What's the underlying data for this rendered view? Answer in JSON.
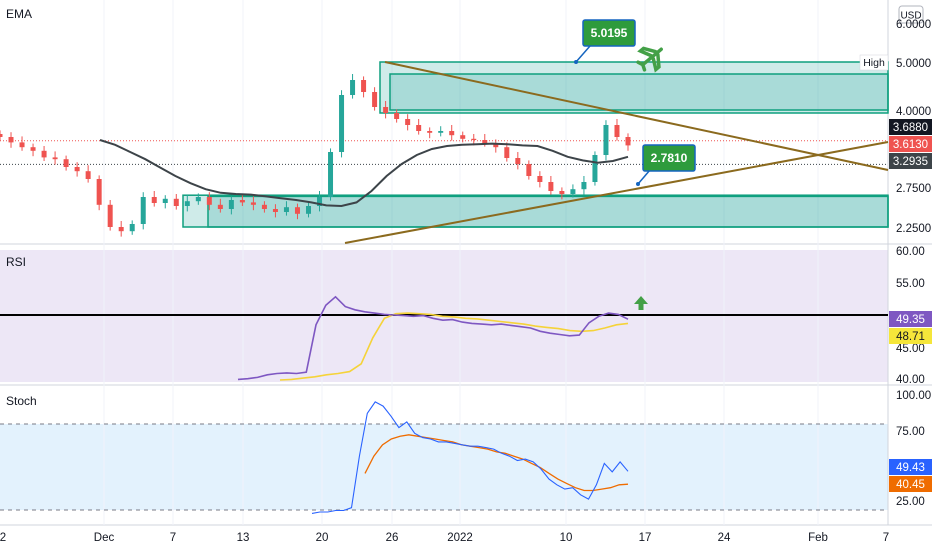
{
  "currency": "USD",
  "colors": {
    "up": "#26a69a",
    "down": "#ef5350",
    "zone_fill": "#26a69a",
    "zone_stroke": "#0e9f7e",
    "ema": "#3d4449",
    "trendline": "#8b6a1e",
    "rsi": "#7e57c2",
    "rsi_ma": "#f5d339",
    "rsi_bg": "#ede7f6",
    "stoch_k": "#2962ff",
    "stoch_d": "#ef6c00",
    "stoch_bg": "#e3f2fd",
    "callout_fill": "#2e9b3c",
    "callout_border": "#1565c0",
    "arrow": "#43a047"
  },
  "panes": {
    "main": {
      "label": "EMA"
    },
    "rsi": {
      "label": "RSI"
    },
    "stoch": {
      "label": "Stoch"
    }
  },
  "axis": {
    "main_ticks": [
      "6.0000",
      "5.0000",
      "4.0000",
      "2.7500",
      "2.2500"
    ],
    "rsi_ticks": [
      "60.00",
      "55.00",
      "45.00",
      "40.00"
    ],
    "stoch_ticks": [
      "100.00",
      "75.00",
      "25.00"
    ],
    "time_ticks": [
      "2",
      "Dec",
      "7",
      "13",
      "20",
      "26",
      "2022",
      "10",
      "17",
      "24",
      "Feb",
      "7"
    ]
  },
  "price_labels": {
    "high_tag": "High",
    "high": "5.0000",
    "last": "3.6880",
    "current": "3.6130",
    "ema": "3.2935",
    "rsi": "49.35",
    "rsi_ma": "48.71",
    "stoch_k": "49.43",
    "stoch_d": "40.45"
  },
  "annotations": {
    "upper_callout": "5.0195",
    "lower_callout": "2.7810"
  },
  "chart_data": [
    {
      "type": "candlestick",
      "title": "EMA",
      "ylim": [
        2.2,
        6.0
      ],
      "x_ticks": [
        "2",
        "Dec",
        "7",
        "13",
        "20",
        "26",
        "2022",
        "10",
        "17",
        "24",
        "Feb",
        "7"
      ],
      "close": [
        3.75,
        3.66,
        3.58,
        3.52,
        3.41,
        3.38,
        3.25,
        3.18,
        3.05,
        2.62,
        2.25,
        2.18,
        2.3,
        2.75,
        2.65,
        2.72,
        2.6,
        2.68,
        2.75,
        2.62,
        2.55,
        2.7,
        2.66,
        2.62,
        2.55,
        2.5,
        2.58,
        2.47,
        2.6,
        2.75,
        3.5,
        4.45,
        4.7,
        4.5,
        4.25,
        4.15,
        4.05,
        3.95,
        3.85,
        3.82,
        3.85,
        3.78,
        3.72,
        3.7,
        3.65,
        3.58,
        3.4,
        3.3,
        3.1,
        3.0,
        2.85,
        2.8,
        2.88,
        3.0,
        3.45,
        3.95,
        3.75,
        3.61
      ],
      "series": [
        {
          "name": "EMA",
          "values": [
            3.7,
            3.62,
            3.5,
            3.38,
            3.24,
            3.1,
            2.98,
            2.88,
            2.82,
            2.8,
            2.79,
            2.76,
            2.73,
            2.7,
            2.66,
            2.61,
            2.6,
            2.66,
            2.85,
            3.1,
            3.3,
            3.45,
            3.55,
            3.6,
            3.62,
            3.63,
            3.64,
            3.63,
            3.61,
            3.6,
            3.52,
            3.42,
            3.36,
            3.32,
            3.35,
            3.42
          ]
        }
      ],
      "zones": [
        {
          "from": 4.15,
          "to": 5.0
        },
        {
          "from": 4.2,
          "to": 4.8
        },
        {
          "from": 2.25,
          "to": 2.78
        },
        {
          "from": 2.25,
          "to": 2.76
        }
      ],
      "horizontal_levels": [
        3.688,
        3.2935,
        5.0
      ],
      "annotations": [
        "5.0195",
        "2.7810"
      ]
    },
    {
      "type": "line",
      "title": "RSI",
      "ylim": [
        40,
        60
      ],
      "hline": 50.5,
      "series": [
        {
          "name": "RSI",
          "values": [
            40.1,
            40.2,
            40.4,
            40.8,
            41.0,
            41.1,
            41.0,
            41.2,
            48.5,
            51.5,
            52.8,
            51.3,
            50.8,
            50.5,
            50.3,
            50.1,
            50.0,
            49.9,
            49.8,
            49.9,
            49.5,
            49.2,
            49.3,
            48.9,
            48.7,
            48.6,
            48.5,
            48.6,
            48.4,
            48.2,
            48.0,
            47.5,
            47.2,
            47.0,
            46.8,
            46.9,
            48.8,
            49.8,
            50.3,
            50.1,
            49.35
          ]
        },
        {
          "name": "RSI-MA",
          "values": [
            40.0,
            40.1,
            40.3,
            40.5,
            40.8,
            41.0,
            41.3,
            42.5,
            46.5,
            49.5,
            50.2,
            50.3,
            50.2,
            50.1,
            49.8,
            49.7,
            49.5,
            49.4,
            49.2,
            49.0,
            48.8,
            48.6,
            48.3,
            48.1,
            47.9,
            47.6,
            47.5,
            47.6,
            48.0,
            48.5,
            48.71
          ]
        }
      ],
      "values_shown": [
        49.35,
        48.71
      ]
    },
    {
      "type": "line",
      "title": "Stoch",
      "ylim": [
        15,
        100
      ],
      "hlines": [
        80,
        20
      ],
      "series": [
        {
          "name": "%K",
          "values": [
            20,
            21,
            21,
            22,
            22,
            24,
            60,
            90,
            98,
            95,
            88,
            80,
            84,
            76,
            73,
            72,
            70,
            70,
            69,
            68,
            67,
            67,
            66,
            65,
            62,
            60,
            57,
            58,
            56,
            51,
            44,
            40,
            37,
            38,
            33,
            30,
            40,
            55,
            49,
            56,
            49.43
          ]
        },
        {
          "name": "%D",
          "values": [
            48,
            60,
            68,
            72,
            74,
            75,
            74,
            73,
            72,
            71,
            70,
            68,
            67,
            66,
            65,
            63,
            62,
            60,
            58,
            55,
            52,
            48,
            44,
            41,
            38,
            36,
            36,
            37,
            38,
            40,
            40.45
          ]
        }
      ],
      "values_shown": [
        49.43,
        40.45
      ]
    }
  ]
}
